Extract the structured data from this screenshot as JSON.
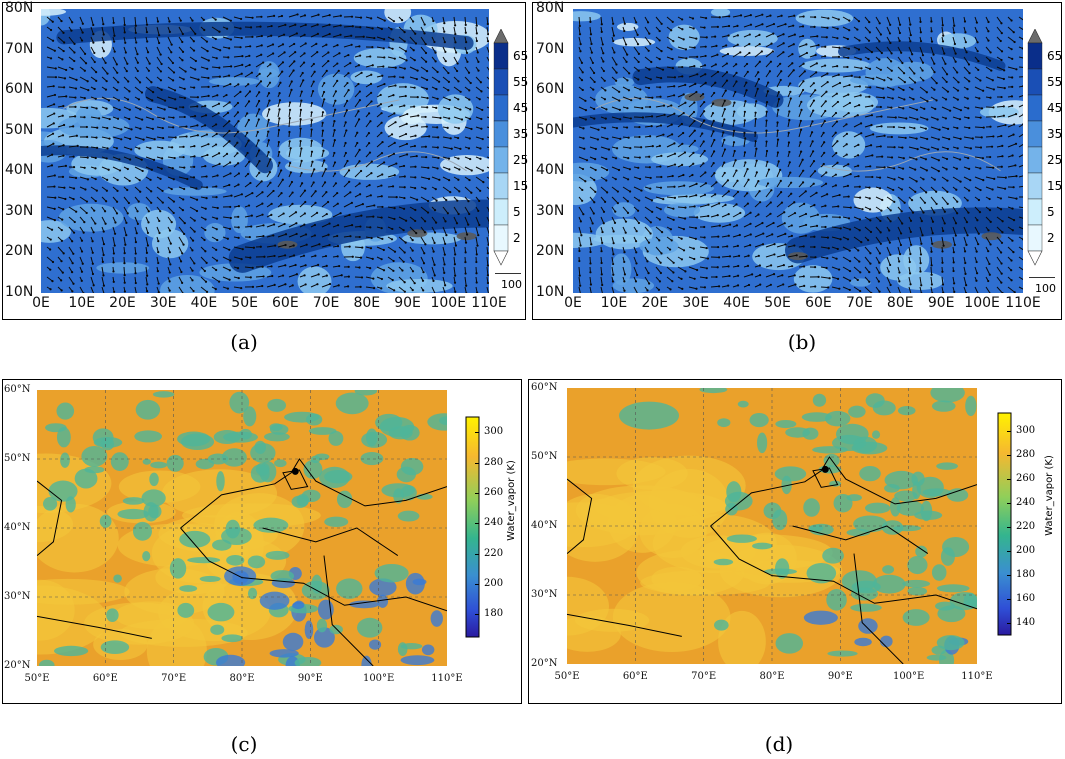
{
  "panels": {
    "a": {
      "label": "(a)"
    },
    "b": {
      "label": "(b)"
    },
    "c": {
      "label": "(c)"
    },
    "d": {
      "label": "(d)"
    }
  },
  "top_axes": {
    "lat_labels": [
      "80N",
      "70N",
      "60N",
      "50N",
      "40N",
      "30N",
      "20N",
      "10N"
    ],
    "lon_labels": [
      "0E",
      "10E",
      "20E",
      "30E",
      "40E",
      "50E",
      "60E",
      "70E",
      "80E",
      "90E",
      "100E",
      "110E"
    ],
    "colorbar_labels": [
      "65",
      "55",
      "45",
      "35",
      "25",
      "15",
      "5",
      "2"
    ],
    "colorbar_colors": [
      "#0a2e8a",
      "#1a4fb5",
      "#2a6ccd",
      "#4a8fdc",
      "#74b3ea",
      "#a8d6f5",
      "#cdeefc",
      "#e8f8ff"
    ],
    "reference_vector_label": "100"
  },
  "bottom_axes": {
    "lat_labels": [
      "60°N",
      "50°N",
      "40°N",
      "30°N",
      "20°N"
    ],
    "lon_labels": [
      "50°E",
      "60°E",
      "70°E",
      "80°E",
      "90°E",
      "100°E",
      "110°E"
    ],
    "colorbar_title": "Water_vapor (K)",
    "colorbar_c_labels": [
      "300",
      "280",
      "260",
      "240",
      "220",
      "200",
      "180"
    ],
    "colorbar_d_labels": [
      "300",
      "280",
      "260",
      "240",
      "220",
      "200",
      "180",
      "160",
      "140"
    ]
  },
  "colors": {
    "deep_blue": "#0b3d91",
    "mid_blue": "#2f6fd0",
    "light_blue": "#8cc8f0",
    "pale_blue": "#d6f0fc",
    "wv_yellow": "#f3c63a",
    "wv_orange": "#eaa12b",
    "wv_green": "#4db59a",
    "wv_blue": "#3a7ad6"
  }
}
